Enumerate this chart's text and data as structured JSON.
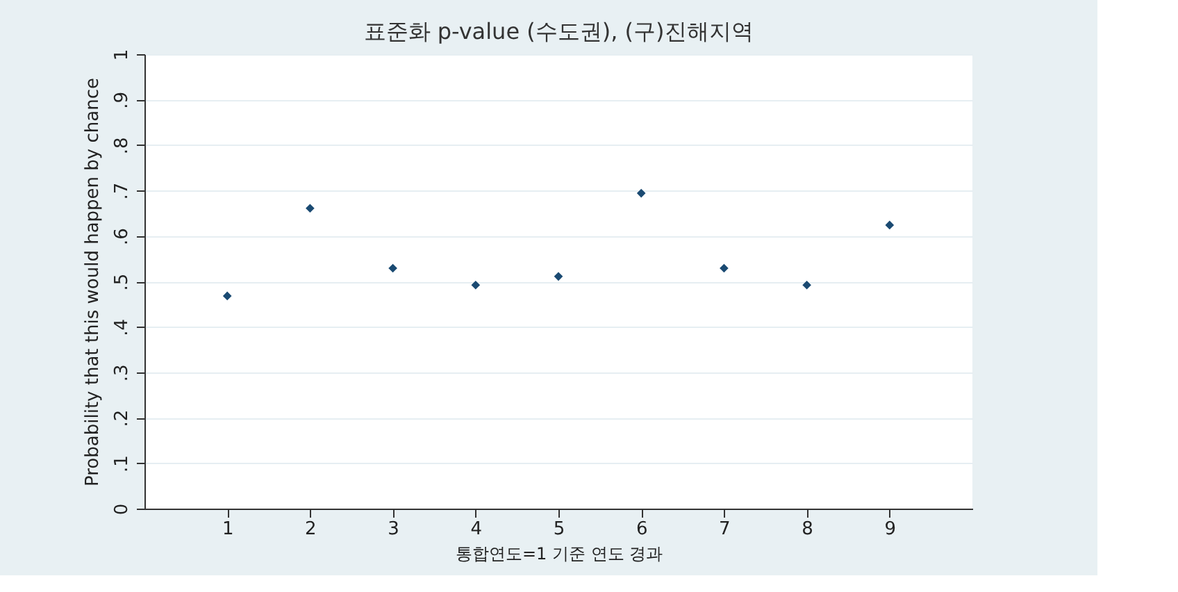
{
  "chart_data": {
    "type": "scatter",
    "title": "표준화 p-value (수도권), (구)진해지역",
    "xlabel": "통합연도=1 기준 연도 경과",
    "ylabel": "Probability that this would happen by chance",
    "x": [
      1,
      2,
      3,
      4,
      5,
      6,
      7,
      8,
      9
    ],
    "series": [
      {
        "color": "#1a4a72",
        "values": [
          0.468,
          0.661,
          0.529,
          0.492,
          0.511,
          0.694,
          0.529,
          0.492,
          0.624
        ]
      }
    ],
    "xlim": [
      0,
      10
    ],
    "xticks": [
      1,
      2,
      3,
      4,
      5,
      6,
      7,
      8,
      9
    ],
    "ylim": [
      0,
      1
    ],
    "yticks": [
      0,
      {
        "value": 0.1,
        "label": ".1"
      },
      {
        "value": 0.2,
        "label": ".2"
      },
      {
        "value": 0.3,
        "label": ".3"
      },
      {
        "value": 0.4,
        "label": ".4"
      },
      {
        "value": 0.5,
        "label": ".5"
      },
      {
        "value": 0.6,
        "label": ".6"
      },
      {
        "value": 0.7,
        "label": ".7"
      },
      {
        "value": 0.8,
        "label": ".8"
      },
      {
        "value": 0.9,
        "label": ".9"
      },
      1
    ],
    "grid": "y",
    "marker": "diamond"
  }
}
